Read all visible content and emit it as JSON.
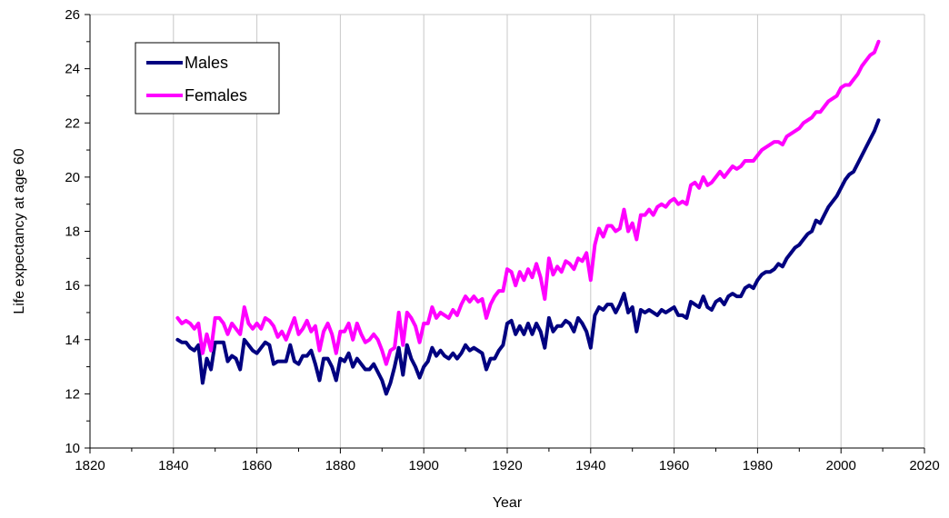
{
  "chart_data": {
    "type": "line",
    "xlabel": "Year",
    "ylabel": "Life expectancy  at age 60",
    "xlim": [
      1820,
      2020
    ],
    "ylim": [
      10,
      26
    ],
    "xticks": [
      1820,
      1840,
      1860,
      1880,
      1900,
      1920,
      1940,
      1960,
      1980,
      2000,
      2020
    ],
    "yticks": [
      10,
      12,
      14,
      16,
      18,
      20,
      22,
      24,
      26
    ],
    "grid": "vertical",
    "legend": "top-left",
    "x": [
      1841,
      1842,
      1843,
      1844,
      1845,
      1846,
      1847,
      1848,
      1849,
      1850,
      1851,
      1852,
      1853,
      1854,
      1855,
      1856,
      1857,
      1858,
      1859,
      1860,
      1861,
      1862,
      1863,
      1864,
      1865,
      1866,
      1867,
      1868,
      1869,
      1870,
      1871,
      1872,
      1873,
      1874,
      1875,
      1876,
      1877,
      1878,
      1879,
      1880,
      1881,
      1882,
      1883,
      1884,
      1885,
      1886,
      1887,
      1888,
      1889,
      1890,
      1891,
      1892,
      1893,
      1894,
      1895,
      1896,
      1897,
      1898,
      1899,
      1900,
      1901,
      1902,
      1903,
      1904,
      1905,
      1906,
      1907,
      1908,
      1909,
      1910,
      1911,
      1912,
      1913,
      1914,
      1915,
      1916,
      1917,
      1918,
      1919,
      1920,
      1921,
      1922,
      1923,
      1924,
      1925,
      1926,
      1927,
      1928,
      1929,
      1930,
      1931,
      1932,
      1933,
      1934,
      1935,
      1936,
      1937,
      1938,
      1939,
      1940,
      1941,
      1942,
      1943,
      1944,
      1945,
      1946,
      1947,
      1948,
      1949,
      1950,
      1951,
      1952,
      1953,
      1954,
      1955,
      1956,
      1957,
      1958,
      1959,
      1960,
      1961,
      1962,
      1963,
      1964,
      1965,
      1966,
      1967,
      1968,
      1969,
      1970,
      1971,
      1972,
      1973,
      1974,
      1975,
      1976,
      1977,
      1978,
      1979,
      1980,
      1981,
      1982,
      1983,
      1984,
      1985,
      1986,
      1987,
      1988,
      1989,
      1990,
      1991,
      1992,
      1993,
      1994,
      1995,
      1996,
      1997,
      1998,
      1999,
      2000,
      2001,
      2002,
      2003,
      2004,
      2005,
      2006,
      2007,
      2008,
      2009
    ],
    "series": [
      {
        "name": "Males",
        "color": "#000080",
        "values": [
          14.0,
          13.9,
          13.9,
          13.7,
          13.6,
          13.8,
          12.4,
          13.3,
          12.9,
          13.9,
          13.9,
          13.9,
          13.2,
          13.4,
          13.3,
          12.9,
          14.0,
          13.8,
          13.6,
          13.5,
          13.7,
          13.9,
          13.8,
          13.1,
          13.2,
          13.2,
          13.2,
          13.8,
          13.2,
          13.1,
          13.4,
          13.4,
          13.6,
          13.1,
          12.5,
          13.3,
          13.3,
          13.0,
          12.5,
          13.3,
          13.2,
          13.5,
          13.0,
          13.3,
          13.1,
          12.9,
          12.9,
          13.1,
          12.8,
          12.5,
          12.0,
          12.4,
          13.0,
          13.7,
          12.7,
          13.8,
          13.3,
          13.0,
          12.6,
          13.0,
          13.2,
          13.7,
          13.4,
          13.6,
          13.4,
          13.3,
          13.5,
          13.3,
          13.5,
          13.8,
          13.6,
          13.7,
          13.6,
          13.5,
          12.9,
          13.3,
          13.3,
          13.6,
          13.8,
          14.6,
          14.7,
          14.2,
          14.5,
          14.2,
          14.6,
          14.2,
          14.6,
          14.3,
          13.7,
          14.8,
          14.3,
          14.5,
          14.5,
          14.7,
          14.6,
          14.3,
          14.8,
          14.6,
          14.3,
          13.7,
          14.9,
          15.2,
          15.1,
          15.3,
          15.3,
          15.0,
          15.3,
          15.7,
          15.0,
          15.2,
          14.3,
          15.1,
          15.0,
          15.1,
          15.0,
          14.9,
          15.1,
          15.0,
          15.1,
          15.2,
          14.9,
          14.9,
          14.8,
          15.4,
          15.3,
          15.2,
          15.6,
          15.2,
          15.1,
          15.4,
          15.5,
          15.3,
          15.6,
          15.7,
          15.6,
          15.6,
          15.9,
          16.0,
          15.9,
          16.2,
          16.4,
          16.5,
          16.5,
          16.6,
          16.8,
          16.7,
          17.0,
          17.2,
          17.4,
          17.5,
          17.7,
          17.9,
          18.0,
          18.4,
          18.3,
          18.6,
          18.9,
          19.1,
          19.3,
          19.6,
          19.9,
          20.1,
          20.2,
          20.5,
          20.8,
          21.1,
          21.4,
          21.7,
          22.1
        ]
      },
      {
        "name": "Females",
        "color": "#ff00ff",
        "values": [
          14.8,
          14.6,
          14.7,
          14.6,
          14.4,
          14.6,
          13.5,
          14.2,
          13.6,
          14.8,
          14.8,
          14.6,
          14.2,
          14.6,
          14.4,
          14.2,
          15.2,
          14.6,
          14.4,
          14.6,
          14.4,
          14.8,
          14.7,
          14.5,
          14.1,
          14.3,
          14.0,
          14.4,
          14.8,
          14.2,
          14.4,
          14.7,
          14.3,
          14.5,
          13.6,
          14.3,
          14.6,
          14.2,
          13.5,
          14.3,
          14.3,
          14.6,
          14.0,
          14.6,
          14.2,
          13.9,
          14.0,
          14.2,
          14.0,
          13.6,
          13.1,
          13.6,
          13.7,
          15.0,
          13.8,
          15.0,
          14.8,
          14.5,
          13.9,
          14.6,
          14.6,
          15.2,
          14.8,
          15.0,
          14.9,
          14.8,
          15.1,
          14.9,
          15.3,
          15.6,
          15.4,
          15.6,
          15.4,
          15.5,
          14.8,
          15.3,
          15.6,
          15.8,
          15.8,
          16.6,
          16.5,
          16.0,
          16.5,
          16.2,
          16.6,
          16.3,
          16.8,
          16.3,
          15.5,
          17.0,
          16.4,
          16.7,
          16.5,
          16.9,
          16.8,
          16.6,
          17.0,
          16.9,
          17.2,
          16.2,
          17.5,
          18.1,
          17.8,
          18.2,
          18.2,
          18.0,
          18.1,
          18.8,
          18.0,
          18.3,
          17.7,
          18.6,
          18.6,
          18.8,
          18.6,
          18.9,
          19.0,
          18.9,
          19.1,
          19.2,
          19.0,
          19.1,
          19.0,
          19.7,
          19.8,
          19.6,
          20.0,
          19.7,
          19.8,
          20.0,
          20.2,
          20.0,
          20.2,
          20.4,
          20.3,
          20.4,
          20.6,
          20.6,
          20.6,
          20.8,
          21.0,
          21.1,
          21.2,
          21.3,
          21.3,
          21.2,
          21.5,
          21.6,
          21.7,
          21.8,
          22.0,
          22.1,
          22.2,
          22.4,
          22.4,
          22.6,
          22.8,
          22.9,
          23.0,
          23.3,
          23.4,
          23.4,
          23.6,
          23.8,
          24.1,
          24.3,
          24.5,
          24.6,
          25.0
        ]
      }
    ]
  }
}
